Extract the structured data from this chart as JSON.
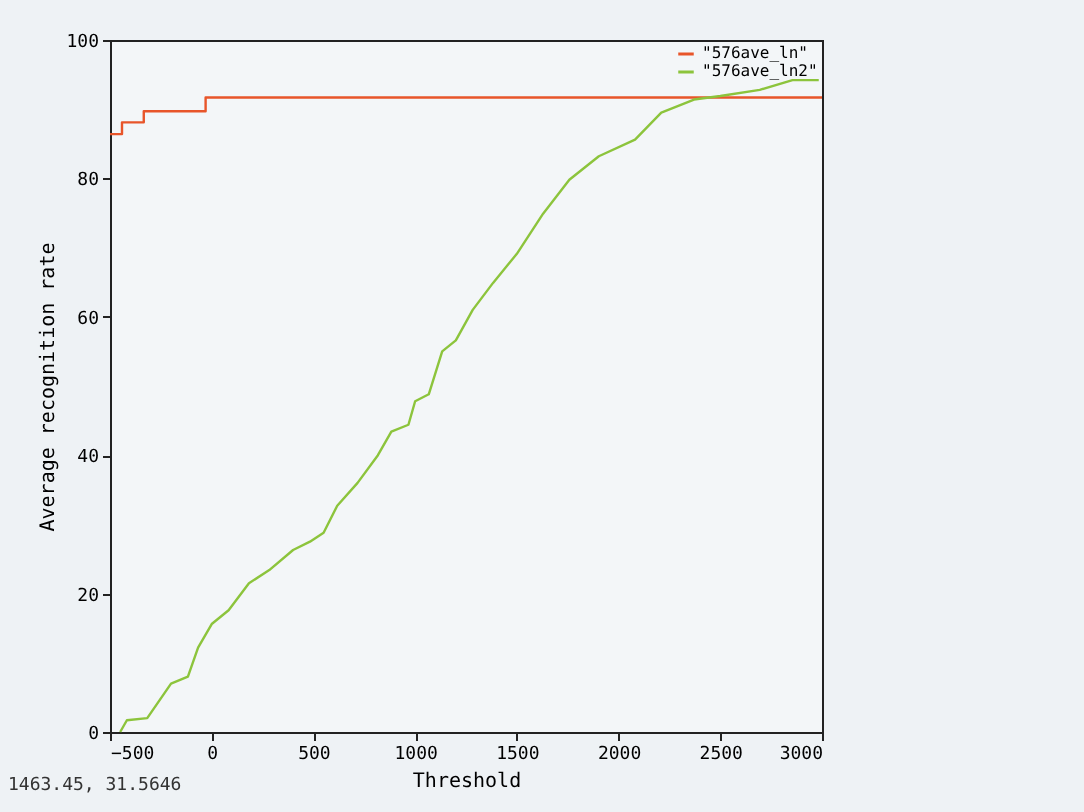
{
  "chart_data": {
    "type": "line",
    "xlabel": "Threshold",
    "ylabel": "Average recognition rate",
    "xlim": [
      -500,
      3000
    ],
    "ylim": [
      0,
      100
    ],
    "xticks": [
      -500,
      0,
      500,
      1000,
      1500,
      2000,
      2500,
      3000
    ],
    "yticks": [
      0,
      20,
      40,
      60,
      80,
      100
    ],
    "grid": false,
    "legend": "top right",
    "marker": "none",
    "line_style": "solid",
    "annotations": [
      "1463.45,  31.5646"
    ],
    "series": [
      {
        "name": "\"576ave_ln\"",
        "type": "step",
        "color": "#e8552a",
        "x": [
          -500,
          -441,
          -334,
          -30,
          3000
        ],
        "values": [
          86.4,
          88.1,
          89.7,
          91.7,
          91.7
        ]
      },
      {
        "name": "\"576ave_ln2\"",
        "color": "#8cc43c",
        "x": [
          -450,
          -417,
          -317,
          -200,
          -117,
          -67,
          0,
          83,
          183,
          283,
          400,
          483,
          550,
          617,
          717,
          817,
          883,
          967,
          1000,
          1067,
          1133,
          1200,
          1283,
          1383,
          1500,
          1629,
          1758,
          1903,
          2081,
          2210,
          2371,
          2500,
          2694,
          2855,
          2984
        ],
        "values": [
          0,
          1.7,
          2,
          7,
          8,
          12.2,
          15.6,
          17.6,
          21.5,
          23.4,
          26.3,
          27.5,
          28.8,
          32.7,
          36,
          40,
          43.4,
          44.4,
          47.8,
          48.8,
          55,
          56.6,
          61,
          64.9,
          69.1,
          74.9,
          79.8,
          83.2,
          85.6,
          89.5,
          91.4,
          91.9,
          92.8,
          94.2,
          94.2
        ]
      }
    ]
  }
}
